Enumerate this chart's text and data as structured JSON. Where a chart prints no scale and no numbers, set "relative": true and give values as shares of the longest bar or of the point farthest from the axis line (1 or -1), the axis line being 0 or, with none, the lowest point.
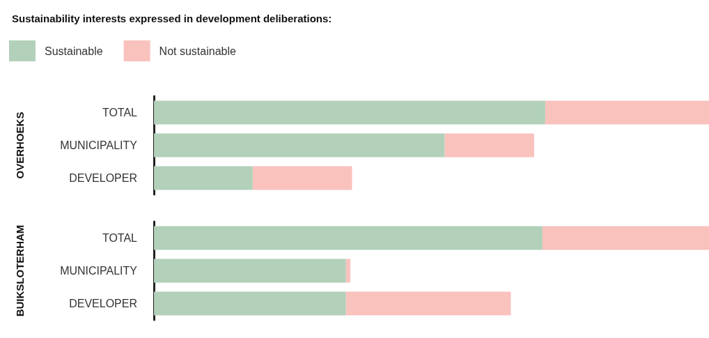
{
  "chart_data": [
    {
      "type": "bar",
      "orientation": "horizontal",
      "stacked": true,
      "relative": true,
      "title": "Sustainability interests expressed in development deliberations:",
      "ylabel": "OVERHOEKS",
      "categories": [
        "TOTAL",
        "MUNICIPALITY",
        "DEVELOPER"
      ],
      "legend": "top left",
      "series": [
        {
          "name": "Sustainable",
          "color": "#b2d0ba",
          "values": [
            0.705,
            0.524,
            0.178
          ]
        },
        {
          "name": "Not sustainable",
          "color": "#f9c2bd",
          "values": [
            0.295,
            0.161,
            0.179
          ]
        }
      ]
    },
    {
      "type": "bar",
      "orientation": "horizontal",
      "stacked": true,
      "relative": true,
      "ylabel": "BUIKSLOTERHAM",
      "categories": [
        "TOTAL",
        "MUNICIPALITY",
        "DEVELOPER"
      ],
      "series": [
        {
          "color": "#b2d0ba",
          "values": [
            0.7,
            0.346,
            0.346
          ]
        },
        {
          "color": "#f9c2bd",
          "values": [
            0.3,
            0.008,
            0.297
          ]
        }
      ]
    }
  ]
}
